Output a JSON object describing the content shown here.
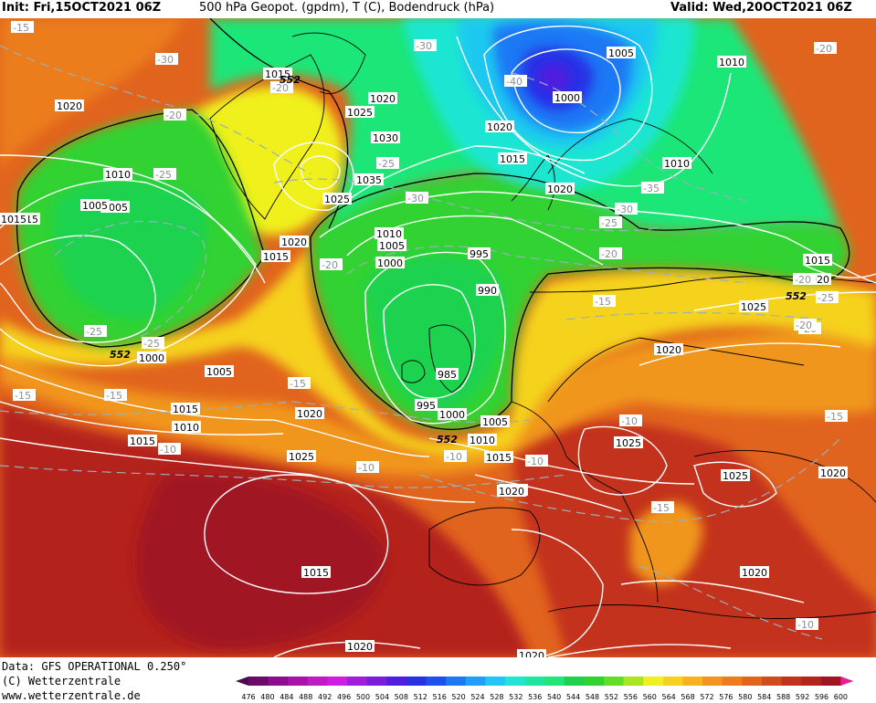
{
  "header": {
    "init": "Init: Fri,15OCT2021 06Z",
    "title": "500 hPa Geopot. (gpdm), T (C), Bodendruck (hPa)",
    "valid": "Valid: Wed,20OCT2021 06Z"
  },
  "footer": {
    "data_source": "Data: GFS OPERATIONAL 0.250°",
    "copyright": "(C) Wetterzentrale",
    "url": "www.wetterzentrale.de"
  },
  "colorbar": {
    "ticks": [
      "476",
      "480",
      "484",
      "488",
      "492",
      "496",
      "500",
      "504",
      "508",
      "512",
      "516",
      "520",
      "524",
      "528",
      "532",
      "536",
      "540",
      "544",
      "548",
      "552",
      "556",
      "560",
      "564",
      "568",
      "572",
      "576",
      "580",
      "584",
      "588",
      "592",
      "596",
      "600"
    ],
    "colors": [
      "#4b0b4f",
      "#6a0d6a",
      "#8b0f8b",
      "#a814a8",
      "#c21ac2",
      "#d21edc",
      "#a01edc",
      "#7a1edc",
      "#4f1ee0",
      "#2830e6",
      "#1e50f0",
      "#1e78f5",
      "#1ea0f5",
      "#1ec8f0",
      "#1ee6d2",
      "#1ee6a0",
      "#1ee678",
      "#1ed250",
      "#32d232",
      "#64dc28",
      "#aae61e",
      "#f0f01e",
      "#f5d21e",
      "#f5b41e",
      "#f0961e",
      "#eb7d1e",
      "#e1641e",
      "#d24b1e",
      "#c3321e",
      "#b4231e",
      "#a01423",
      "#e61e9b"
    ]
  },
  "pressure_labels": [
    {
      "text": "1015"
    },
    {
      "text": "1020"
    },
    {
      "text": "1015"
    },
    {
      "text": "1020"
    },
    {
      "text": "1025"
    },
    {
      "text": "1030"
    },
    {
      "text": "1035"
    },
    {
      "text": "1025"
    },
    {
      "text": "1020"
    },
    {
      "text": "1015"
    },
    {
      "text": "1010"
    },
    {
      "text": "1005"
    },
    {
      "text": "1015"
    },
    {
      "text": "1005"
    },
    {
      "text": "1000"
    },
    {
      "text": "1010"
    },
    {
      "text": "1005"
    },
    {
      "text": "1000"
    },
    {
      "text": "995"
    },
    {
      "text": "990"
    },
    {
      "text": "985"
    },
    {
      "text": "995"
    },
    {
      "text": "1000"
    },
    {
      "text": "1005"
    },
    {
      "text": "1010"
    },
    {
      "text": "1015"
    },
    {
      "text": "1020"
    },
    {
      "text": "1005"
    },
    {
      "text": "1000"
    },
    {
      "text": "1010"
    },
    {
      "text": "1020"
    },
    {
      "text": "1015"
    },
    {
      "text": "1010"
    },
    {
      "text": "1020"
    },
    {
      "text": "1015"
    },
    {
      "text": "1020"
    },
    {
      "text": "1025"
    },
    {
      "text": "1025"
    },
    {
      "text": "1020"
    },
    {
      "text": "1025"
    },
    {
      "text": "1020"
    },
    {
      "text": "1020"
    },
    {
      "text": "1020"
    },
    {
      "text": "1025"
    },
    {
      "text": "1020"
    },
    {
      "text": "1020"
    },
    {
      "text": "1015"
    },
    {
      "text": "1020"
    },
    {
      "text": "1015"
    },
    {
      "text": "1005"
    },
    {
      "text": "1010"
    },
    {
      "text": "1015"
    }
  ],
  "temperature_labels": [
    {
      "text": "-15"
    },
    {
      "text": "-30"
    },
    {
      "text": "-20"
    },
    {
      "text": "-25"
    },
    {
      "text": "-20"
    },
    {
      "text": "-30"
    },
    {
      "text": "-40"
    },
    {
      "text": "-20"
    },
    {
      "text": "-25"
    },
    {
      "text": "-30"
    },
    {
      "text": "-35"
    },
    {
      "text": "-30"
    },
    {
      "text": "-25"
    },
    {
      "text": "-20"
    },
    {
      "text": "-20"
    },
    {
      "text": "-25"
    },
    {
      "text": "-25"
    },
    {
      "text": "-20"
    },
    {
      "text": "-20"
    },
    {
      "text": "-15"
    },
    {
      "text": "-25"
    },
    {
      "text": "-15"
    },
    {
      "text": "-10"
    },
    {
      "text": "-15"
    },
    {
      "text": "-10"
    },
    {
      "text": "-10"
    },
    {
      "text": "-10"
    },
    {
      "text": "-15"
    },
    {
      "text": "-15"
    },
    {
      "text": "-20"
    },
    {
      "text": "-10"
    },
    {
      "text": "-10"
    },
    {
      "text": "-15"
    }
  ],
  "isoline_552_labels": [
    {
      "text": "552"
    },
    {
      "text": "552"
    },
    {
      "text": "552"
    },
    {
      "text": "552"
    }
  ]
}
